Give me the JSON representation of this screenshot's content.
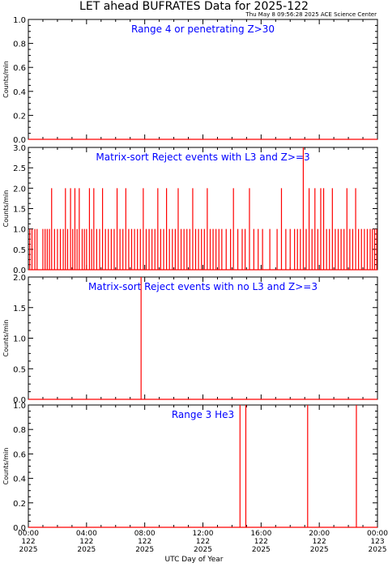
{
  "title": "LET ahead BUFRATES Data for 2025-122",
  "timestamp": "Thu May  8 09:56:28 2025 ACE Science Center",
  "x_axis_label": "UTC Day of Year",
  "x_ticks": [
    {
      "time": "00:00",
      "doy": "122",
      "year": "2025"
    },
    {
      "time": "04:00",
      "doy": "122",
      "year": "2025"
    },
    {
      "time": "08:00",
      "doy": "122",
      "year": "2025"
    },
    {
      "time": "12:00",
      "doy": "122",
      "year": "2025"
    },
    {
      "time": "16:00",
      "doy": "122",
      "year": "2025"
    },
    {
      "time": "20:00",
      "doy": "122",
      "year": "2025"
    },
    {
      "time": "00:00",
      "doy": "123",
      "year": "2025"
    }
  ],
  "colors": {
    "series": "#ff0000",
    "panel_title": "#0000ff",
    "axes": "#000000"
  },
  "chart_data": [
    {
      "type": "line",
      "title": "Range 4 or  penetrating Z>30",
      "ylabel": "Counts/min",
      "xlim": [
        0,
        24
      ],
      "ylim": [
        0,
        1.0
      ],
      "y_ticks": [
        "0.0",
        "0.2",
        "0.4",
        "0.6",
        "0.8",
        "1.0"
      ],
      "baseline": 0,
      "spikes": []
    },
    {
      "type": "line",
      "title": "Matrix-sort Reject events with L3 and Z>=3",
      "ylabel": "Counts/min",
      "xlim": [
        0,
        24
      ],
      "ylim": [
        0,
        3.0
      ],
      "y_ticks": [
        "0.0",
        "0.5",
        "1.0",
        "1.5",
        "2.0",
        "2.5",
        "3.0"
      ],
      "baseline": 0,
      "spikes": [
        {
          "x": 0.1,
          "y": 1
        },
        {
          "x": 0.25,
          "y": 1
        },
        {
          "x": 0.45,
          "y": 1
        },
        {
          "x": 0.6,
          "y": 1
        },
        {
          "x": 1.0,
          "y": 1
        },
        {
          "x": 1.15,
          "y": 1
        },
        {
          "x": 1.3,
          "y": 1
        },
        {
          "x": 1.45,
          "y": 1
        },
        {
          "x": 1.6,
          "y": 2
        },
        {
          "x": 1.8,
          "y": 1
        },
        {
          "x": 2.0,
          "y": 1
        },
        {
          "x": 2.2,
          "y": 1
        },
        {
          "x": 2.4,
          "y": 1
        },
        {
          "x": 2.55,
          "y": 2
        },
        {
          "x": 2.7,
          "y": 1
        },
        {
          "x": 2.9,
          "y": 2
        },
        {
          "x": 3.05,
          "y": 1
        },
        {
          "x": 3.2,
          "y": 2
        },
        {
          "x": 3.35,
          "y": 1
        },
        {
          "x": 3.5,
          "y": 2
        },
        {
          "x": 3.7,
          "y": 1
        },
        {
          "x": 3.85,
          "y": 1
        },
        {
          "x": 4.0,
          "y": 1
        },
        {
          "x": 4.2,
          "y": 2
        },
        {
          "x": 4.35,
          "y": 1
        },
        {
          "x": 4.5,
          "y": 2
        },
        {
          "x": 4.7,
          "y": 1
        },
        {
          "x": 4.9,
          "y": 1
        },
        {
          "x": 5.1,
          "y": 2
        },
        {
          "x": 5.3,
          "y": 1
        },
        {
          "x": 5.5,
          "y": 1
        },
        {
          "x": 5.7,
          "y": 1
        },
        {
          "x": 5.9,
          "y": 1
        },
        {
          "x": 6.1,
          "y": 2
        },
        {
          "x": 6.3,
          "y": 1
        },
        {
          "x": 6.5,
          "y": 1
        },
        {
          "x": 6.7,
          "y": 2
        },
        {
          "x": 6.9,
          "y": 1
        },
        {
          "x": 7.1,
          "y": 1
        },
        {
          "x": 7.3,
          "y": 1
        },
        {
          "x": 7.5,
          "y": 1
        },
        {
          "x": 7.7,
          "y": 1
        },
        {
          "x": 7.9,
          "y": 2
        },
        {
          "x": 8.1,
          "y": 1
        },
        {
          "x": 8.3,
          "y": 1
        },
        {
          "x": 8.5,
          "y": 1
        },
        {
          "x": 8.7,
          "y": 1
        },
        {
          "x": 8.9,
          "y": 2
        },
        {
          "x": 9.1,
          "y": 1
        },
        {
          "x": 9.3,
          "y": 1
        },
        {
          "x": 9.5,
          "y": 2
        },
        {
          "x": 9.7,
          "y": 1
        },
        {
          "x": 9.9,
          "y": 1
        },
        {
          "x": 10.1,
          "y": 1
        },
        {
          "x": 10.3,
          "y": 2
        },
        {
          "x": 10.5,
          "y": 1
        },
        {
          "x": 10.7,
          "y": 1
        },
        {
          "x": 10.9,
          "y": 1
        },
        {
          "x": 11.1,
          "y": 1
        },
        {
          "x": 11.3,
          "y": 2
        },
        {
          "x": 11.5,
          "y": 1
        },
        {
          "x": 11.7,
          "y": 1
        },
        {
          "x": 11.9,
          "y": 1
        },
        {
          "x": 12.1,
          "y": 1
        },
        {
          "x": 12.3,
          "y": 2
        },
        {
          "x": 12.5,
          "y": 1
        },
        {
          "x": 12.7,
          "y": 1
        },
        {
          "x": 12.9,
          "y": 1
        },
        {
          "x": 13.1,
          "y": 1
        },
        {
          "x": 13.3,
          "y": 1
        },
        {
          "x": 13.6,
          "y": 1
        },
        {
          "x": 13.9,
          "y": 1
        },
        {
          "x": 14.1,
          "y": 2
        },
        {
          "x": 14.4,
          "y": 1
        },
        {
          "x": 14.7,
          "y": 1
        },
        {
          "x": 14.9,
          "y": 1
        },
        {
          "x": 15.2,
          "y": 2
        },
        {
          "x": 15.5,
          "y": 1
        },
        {
          "x": 15.8,
          "y": 1
        },
        {
          "x": 16.1,
          "y": 1
        },
        {
          "x": 16.6,
          "y": 1
        },
        {
          "x": 17.1,
          "y": 1
        },
        {
          "x": 17.4,
          "y": 2
        },
        {
          "x": 17.7,
          "y": 1
        },
        {
          "x": 18.0,
          "y": 1
        },
        {
          "x": 18.3,
          "y": 1
        },
        {
          "x": 18.5,
          "y": 1
        },
        {
          "x": 18.7,
          "y": 1
        },
        {
          "x": 18.9,
          "y": 3
        },
        {
          "x": 19.1,
          "y": 1
        },
        {
          "x": 19.3,
          "y": 2
        },
        {
          "x": 19.5,
          "y": 1
        },
        {
          "x": 19.7,
          "y": 2
        },
        {
          "x": 19.9,
          "y": 1
        },
        {
          "x": 20.1,
          "y": 2
        },
        {
          "x": 20.3,
          "y": 2
        },
        {
          "x": 20.5,
          "y": 1
        },
        {
          "x": 20.7,
          "y": 1
        },
        {
          "x": 20.9,
          "y": 2
        },
        {
          "x": 21.1,
          "y": 1
        },
        {
          "x": 21.3,
          "y": 1
        },
        {
          "x": 21.5,
          "y": 1
        },
        {
          "x": 21.7,
          "y": 1
        },
        {
          "x": 21.9,
          "y": 2
        },
        {
          "x": 22.1,
          "y": 1
        },
        {
          "x": 22.3,
          "y": 1
        },
        {
          "x": 22.5,
          "y": 2
        },
        {
          "x": 22.7,
          "y": 1
        },
        {
          "x": 22.9,
          "y": 1
        },
        {
          "x": 23.1,
          "y": 1
        },
        {
          "x": 23.3,
          "y": 1
        },
        {
          "x": 23.5,
          "y": 1
        },
        {
          "x": 23.65,
          "y": 1
        },
        {
          "x": 23.8,
          "y": 1
        },
        {
          "x": 23.95,
          "y": 1
        }
      ]
    },
    {
      "type": "line",
      "title": "Matrix-sort Reject events with no L3 and Z>=3",
      "ylabel": "Counts/min",
      "xlim": [
        0,
        24
      ],
      "ylim": [
        0,
        2.0
      ],
      "y_ticks": [
        "0.0",
        "0.5",
        "1.0",
        "1.5",
        "2.0"
      ],
      "baseline": 0,
      "spikes": [
        {
          "x": 7.75,
          "y": 2
        }
      ]
    },
    {
      "type": "line",
      "title": "Range 3 He3",
      "ylabel": "Counts/min",
      "xlim": [
        0,
        24
      ],
      "ylim": [
        0,
        1.0
      ],
      "y_ticks": [
        "0.0",
        "0.2",
        "0.4",
        "0.6",
        "0.8",
        "1.0"
      ],
      "baseline": 0,
      "spikes": [
        {
          "x": 14.55,
          "y": 1
        },
        {
          "x": 14.95,
          "y": 1
        },
        {
          "x": 19.2,
          "y": 1
        },
        {
          "x": 22.55,
          "y": 1
        }
      ]
    }
  ]
}
